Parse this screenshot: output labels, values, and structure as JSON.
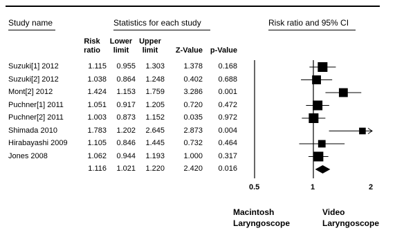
{
  "header": {
    "study_name": "Study name",
    "stats_title": "Statistics for each study",
    "ci_title": "Risk ratio and 95% CI"
  },
  "columns": [
    {
      "key": "rr",
      "label_lines": [
        "Risk",
        "ratio"
      ]
    },
    {
      "key": "lower",
      "label_lines": [
        "Lower",
        "limit"
      ]
    },
    {
      "key": "upper",
      "label_lines": [
        "Upper",
        "limit"
      ]
    },
    {
      "key": "z",
      "label_lines": [
        "",
        "Z-Value"
      ]
    },
    {
      "key": "p",
      "label_lines": [
        "",
        "p-Value"
      ]
    }
  ],
  "rows": [
    {
      "name": "Suzuki[1] 2012",
      "rr": "1.115",
      "lower": "0.955",
      "upper": "1.303",
      "z": "1.378",
      "p": "0.168"
    },
    {
      "name": "Suzuki[2] 2012",
      "rr": "1.038",
      "lower": "0.864",
      "upper": "1.248",
      "z": "0.402",
      "p": "0.688"
    },
    {
      "name": "Mont[2] 2012",
      "rr": "1.424",
      "lower": "1.153",
      "upper": "1.759",
      "z": "3.286",
      "p": "0.001"
    },
    {
      "name": "Puchner[1] 2011",
      "rr": "1.051",
      "lower": "0.917",
      "upper": "1.205",
      "z": "0.720",
      "p": "0.472"
    },
    {
      "name": "Puchner[2] 2011",
      "rr": "1.003",
      "lower": "0.873",
      "upper": "1.152",
      "z": "0.035",
      "p": "0.972"
    },
    {
      "name": "Shimada 2010",
      "rr": "1.783",
      "lower": "1.202",
      "upper": "2.645",
      "z": "2.873",
      "p": "0.004"
    },
    {
      "name": "Hirabayashi 2009",
      "rr": "1.105",
      "lower": "0.846",
      "upper": "1.445",
      "z": "0.732",
      "p": "0.464"
    },
    {
      "name": "Jones 2008",
      "rr": "1.062",
      "lower": "0.944",
      "upper": "1.193",
      "z": "1.000",
      "p": "0.317"
    }
  ],
  "summary": {
    "name": "",
    "rr": "1.116",
    "lower": "1.021",
    "upper": "1.220",
    "z": "2.420",
    "p": "0.016"
  },
  "chart_data": {
    "type": "forest",
    "scale": "log",
    "xlim": [
      0.5,
      2
    ],
    "ticks": [
      "0.5",
      "1",
      "2"
    ],
    "reference_line": 1,
    "studies": [
      {
        "name": "Suzuki[1] 2012",
        "rr": 1.115,
        "lower": 0.955,
        "upper": 1.303,
        "weight": 1.0
      },
      {
        "name": "Suzuki[2] 2012",
        "rr": 1.038,
        "lower": 0.864,
        "upper": 1.248,
        "weight": 0.85
      },
      {
        "name": "Mont[2] 2012",
        "rr": 1.424,
        "lower": 1.153,
        "upper": 1.759,
        "weight": 0.85
      },
      {
        "name": "Puchner[1] 2011",
        "rr": 1.051,
        "lower": 0.917,
        "upper": 1.205,
        "weight": 1.0
      },
      {
        "name": "Puchner[2] 2011",
        "rr": 1.003,
        "lower": 0.873,
        "upper": 1.152,
        "weight": 1.0
      },
      {
        "name": "Shimada 2010",
        "rr": 1.783,
        "lower": 1.202,
        "upper": 2.645,
        "weight": 0.45
      },
      {
        "name": "Hirabayashi 2009",
        "rr": 1.105,
        "lower": 0.846,
        "upper": 1.445,
        "weight": 0.6
      },
      {
        "name": "Jones 2008",
        "rr": 1.062,
        "lower": 0.944,
        "upper": 1.193,
        "weight": 1.0
      }
    ],
    "summary": {
      "rr": 1.116,
      "lower": 1.021,
      "upper": 1.22
    },
    "xlabel_left_lines": [
      "Macintosh",
      "Laryngoscope"
    ],
    "xlabel_right_lines": [
      "Video",
      "Laryngoscope"
    ]
  }
}
